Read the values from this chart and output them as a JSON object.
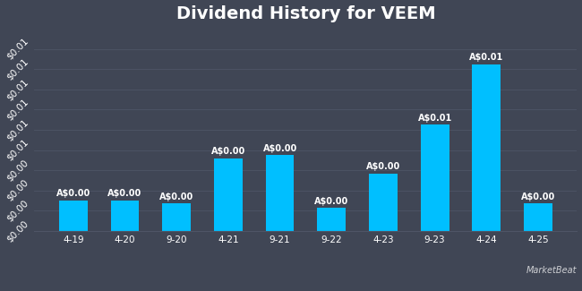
{
  "title": "Dividend History for VEEM",
  "categories": [
    "4-19",
    "4-20",
    "9-20",
    "4-21",
    "9-21",
    "9-22",
    "4-23",
    "9-23",
    "4-24",
    "4-25"
  ],
  "values": [
    0.002,
    0.002,
    0.0018,
    0.0048,
    0.005,
    0.0015,
    0.0038,
    0.007,
    0.011,
    0.0018
  ],
  "labels": [
    "A$0.00",
    "A$0.00",
    "A$0.00",
    "A$0.00",
    "A$0.00",
    "A$0.00",
    "A$0.00",
    "A$0.01",
    "A$0.01",
    "A$0.00"
  ],
  "bar_color": "#00bfff",
  "background_color": "#404655",
  "text_color": "#ffffff",
  "grid_color": "#4e5566",
  "ylim": [
    0,
    0.0132
  ],
  "title_fontsize": 14,
  "label_fontsize": 7,
  "tick_fontsize": 7.5
}
